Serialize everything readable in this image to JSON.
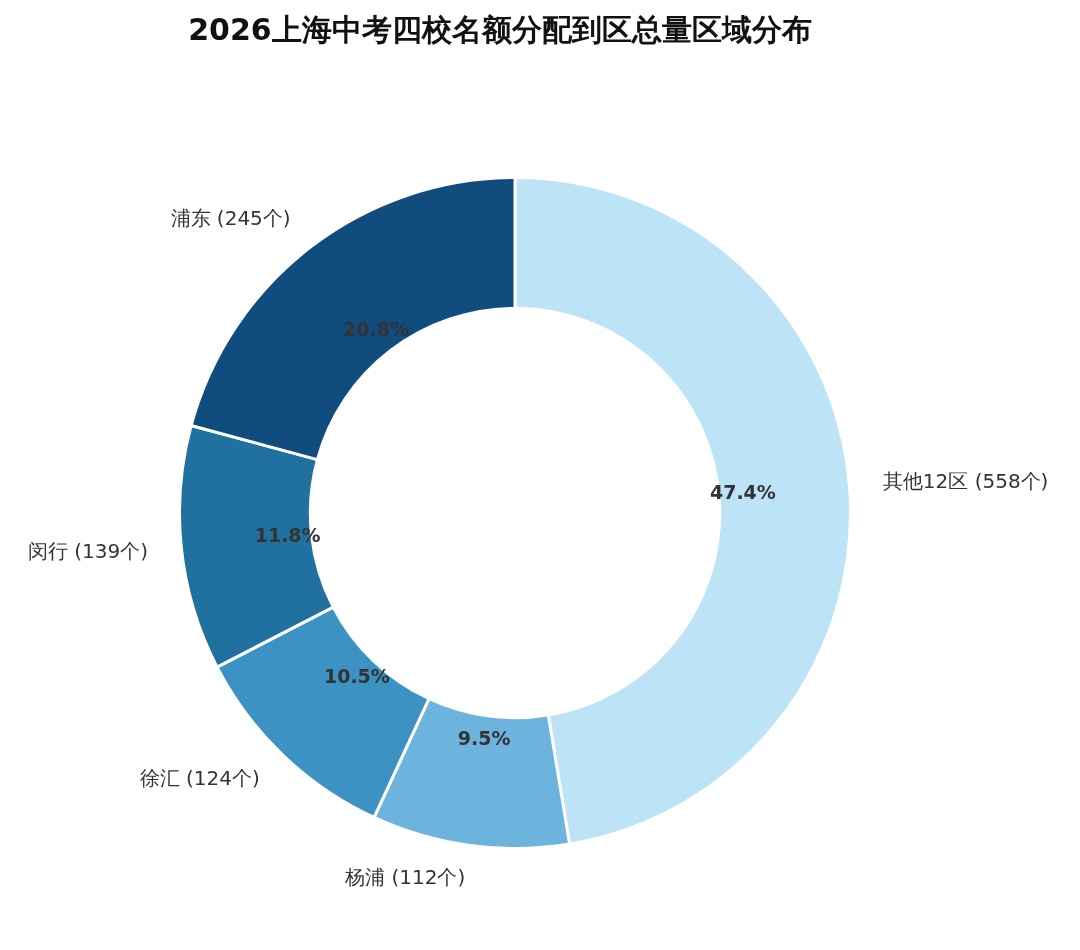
{
  "chart_data": {
    "type": "donut",
    "title": "2026上海中考四校名额分配到区总量区域分布",
    "categories": [
      "其他12区 (558个)",
      "杨浦 (112个)",
      "徐汇 (124个)",
      "闵行 (139个)",
      "浦东 (245个)"
    ],
    "values": [
      47.4,
      9.5,
      10.5,
      11.8,
      20.8
    ],
    "colors": [
      "#bde4f6",
      "#6cb3de",
      "#3b92c3",
      "#2171a0",
      "#114c7e"
    ],
    "value_labels": [
      "47.4%",
      "9.5%",
      "10.5%",
      "11.8%",
      "20.8%"
    ],
    "legend": false
  }
}
